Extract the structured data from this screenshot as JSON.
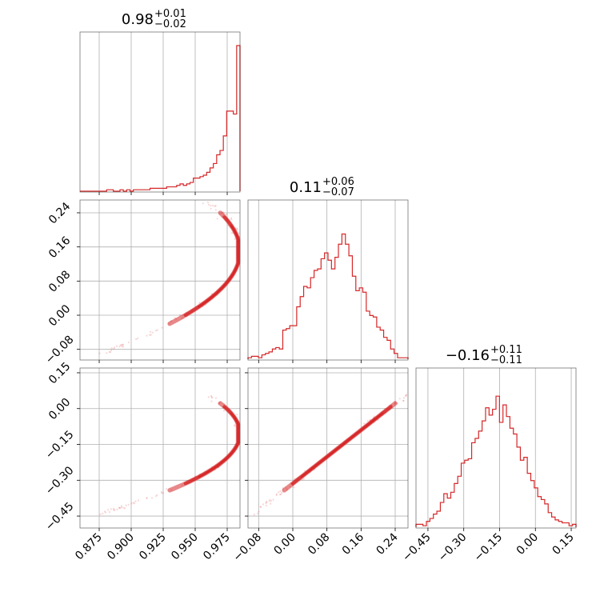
{
  "chart_data": {
    "type": "corner",
    "color": "#d62728",
    "grid": true,
    "parameters": [
      {
        "range": [
          0.86,
          0.985
        ],
        "ticks": [
          "0.875",
          "0.900",
          "0.925",
          "0.950",
          "0.975"
        ],
        "tick_values": [
          0.875,
          0.9,
          0.925,
          0.95,
          0.975
        ],
        "title": {
          "median": "0.98",
          "plus": "+0.01",
          "minus": "−0.02"
        }
      },
      {
        "range": [
          -0.105,
          0.27
        ],
        "ticks": [
          "−0.08",
          "0.00",
          "0.08",
          "0.16",
          "0.24"
        ],
        "tick_values": [
          -0.08,
          0.0,
          0.08,
          0.16,
          0.24
        ],
        "title": {
          "median": "0.11",
          "plus": "+0.06",
          "minus": "−0.07"
        }
      },
      {
        "range": [
          -0.5,
          0.17
        ],
        "ticks": [
          "−0.45",
          "−0.30",
          "−0.15",
          "0.00",
          "0.15"
        ],
        "tick_values": [
          -0.45,
          -0.3,
          -0.15,
          0.0,
          0.15
        ],
        "title": {
          "median": "−0.16",
          "plus": "+0.11",
          "minus": "−0.11"
        }
      }
    ],
    "histograms": [
      {
        "param": 0,
        "bin_edges_range": [
          0.86,
          0.985
        ],
        "counts": [
          0,
          0,
          0,
          0,
          0,
          0,
          0,
          0,
          0.01,
          0.01,
          0,
          0,
          0.01,
          0,
          0.01,
          0,
          0.01,
          0.01,
          0.01,
          0.01,
          0.01,
          0.02,
          0.02,
          0.02,
          0.02,
          0.02,
          0.03,
          0.03,
          0.03,
          0.04,
          0.05,
          0.04,
          0.05,
          0.06,
          0.09,
          0.09,
          0.1,
          0.11,
          0.13,
          0.16,
          0.19,
          0.25,
          0.28,
          0.38,
          0.55,
          0.55,
          0.53,
          1.0
        ]
      },
      {
        "param": 1,
        "bin_edges_range": [
          -0.105,
          0.27
        ],
        "counts": [
          0.01,
          0.02,
          0.02,
          0.01,
          0.03,
          0.04,
          0.05,
          0.07,
          0.08,
          0.07,
          0.2,
          0.21,
          0.23,
          0.23,
          0.36,
          0.43,
          0.5,
          0.49,
          0.56,
          0.61,
          0.62,
          0.69,
          0.73,
          0.68,
          0.62,
          0.7,
          0.79,
          0.86,
          0.79,
          0.71,
          0.57,
          0.47,
          0.49,
          0.46,
          0.33,
          0.3,
          0.29,
          0.22,
          0.2,
          0.15,
          0.13,
          0.07,
          0.04,
          0.01,
          0.01,
          0.01
        ]
      },
      {
        "param": 2,
        "bin_edges_range": [
          -0.5,
          0.17
        ],
        "counts": [
          0.02,
          0.02,
          0.01,
          0.04,
          0.06,
          0.09,
          0.11,
          0.17,
          0.23,
          0.2,
          0.24,
          0.3,
          0.35,
          0.44,
          0.46,
          0.47,
          0.58,
          0.61,
          0.66,
          0.73,
          0.82,
          0.77,
          0.81,
          0.9,
          0.72,
          0.84,
          0.76,
          0.68,
          0.64,
          0.55,
          0.46,
          0.48,
          0.37,
          0.32,
          0.27,
          0.21,
          0.19,
          0.16,
          0.1,
          0.07,
          0.05,
          0.04,
          0.03,
          0.03,
          0.01,
          0.02
        ]
      }
    ],
    "joint_2d": [
      {
        "x_param": 0,
        "y_param": 1
      },
      {
        "x_param": 0,
        "y_param": 2
      },
      {
        "x_param": 1,
        "y_param": 2
      }
    ]
  }
}
